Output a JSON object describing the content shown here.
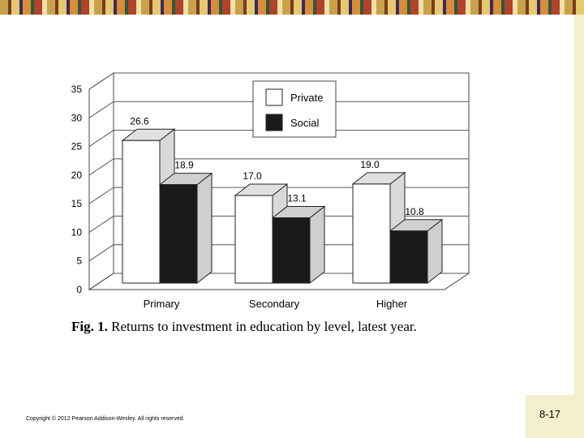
{
  "slide": {
    "copyright": "Copyright © 2012 Pearson Addison-Wesley. All rights reserved.",
    "number": "8-17"
  },
  "caption": {
    "fig": "Fig. 1.",
    "text": "Returns to investment in education by level, latest year."
  },
  "chart_data": {
    "type": "bar",
    "categories": [
      "Primary",
      "Secondary",
      "Higher"
    ],
    "series": [
      {
        "name": "Private",
        "values": [
          26.6,
          17.0,
          19.0
        ],
        "labels": [
          "26.6",
          "17.0",
          "19.0"
        ],
        "color": "#ffffff"
      },
      {
        "name": "Social",
        "values": [
          18.9,
          13.1,
          10.8
        ],
        "labels": [
          "18.9",
          "13.1",
          "10.8"
        ],
        "color": "#1a1a1a"
      }
    ],
    "ylim": [
      0,
      35
    ],
    "yticks": [
      "0",
      "5",
      "10",
      "15",
      "20",
      "25",
      "30",
      "35"
    ],
    "grid": true,
    "legend": "top-center",
    "style": "3d"
  }
}
